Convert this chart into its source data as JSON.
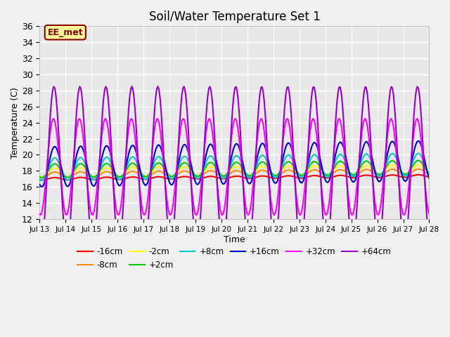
{
  "title": "Soil/Water Temperature Set 1",
  "xlabel": "Time",
  "ylabel": "Temperature (C)",
  "ylim": [
    12,
    36
  ],
  "xlim": [
    0,
    15
  ],
  "yticks": [
    12,
    14,
    16,
    18,
    20,
    22,
    24,
    26,
    28,
    30,
    32,
    34,
    36
  ],
  "xtick_positions": [
    0,
    1,
    2,
    3,
    4,
    5,
    6,
    7,
    8,
    9,
    10,
    11,
    12,
    13,
    14,
    15
  ],
  "xtick_labels": [
    "Jul 13",
    "Jul 14",
    "Jul 15",
    "Jul 16",
    "Jul 17",
    "Jul 18",
    "Jul 19",
    "Jul 20",
    "Jul 21",
    "Jul 22",
    "Jul 23",
    "Jul 24",
    "Jul 25",
    "Jul 26",
    "Jul 27",
    "Jul 28"
  ],
  "fig_bg_color": "#f0f0f0",
  "plot_bg_color": "#e8e8e8",
  "grid_color": "#ffffff",
  "series": {
    "-16cm": {
      "color": "#ff0000",
      "lw": 1.5
    },
    "-8cm": {
      "color": "#ff8c00",
      "lw": 1.5
    },
    "-2cm": {
      "color": "#ffff00",
      "lw": 1.5
    },
    "+2cm": {
      "color": "#00cc00",
      "lw": 1.5
    },
    "+8cm": {
      "color": "#00cccc",
      "lw": 1.5
    },
    "+16cm": {
      "color": "#0000cc",
      "lw": 1.5
    },
    "+32cm": {
      "color": "#ff00ff",
      "lw": 1.5
    },
    "+64cm": {
      "color": "#9900cc",
      "lw": 1.5
    }
  },
  "annotation_text": "EE_met",
  "legend_ncol": 6
}
